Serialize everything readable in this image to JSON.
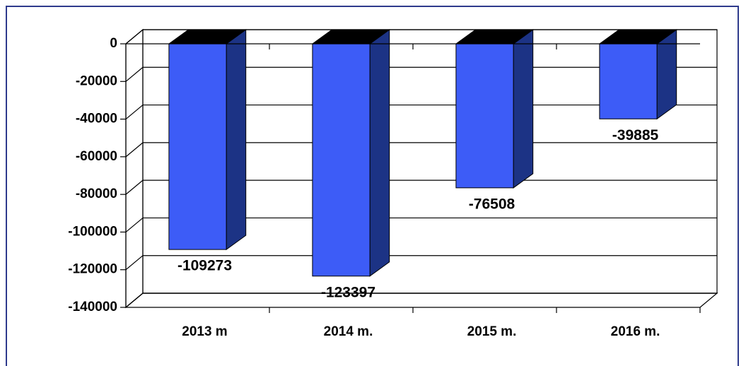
{
  "chart_data": {
    "type": "bar3d",
    "categories": [
      "2013 m",
      "2014 m.",
      "2015 m.",
      "2016 m."
    ],
    "values": [
      -109273,
      -123397,
      -76508,
      -39885
    ],
    "color": "#3d5cf7",
    "side_color": "#1c3385",
    "top_color": "#000000",
    "ylim": [
      -140000,
      0
    ],
    "yticks": [
      0,
      -20000,
      -40000,
      -60000,
      -80000,
      -100000,
      -120000,
      -140000
    ],
    "grid": true
  }
}
